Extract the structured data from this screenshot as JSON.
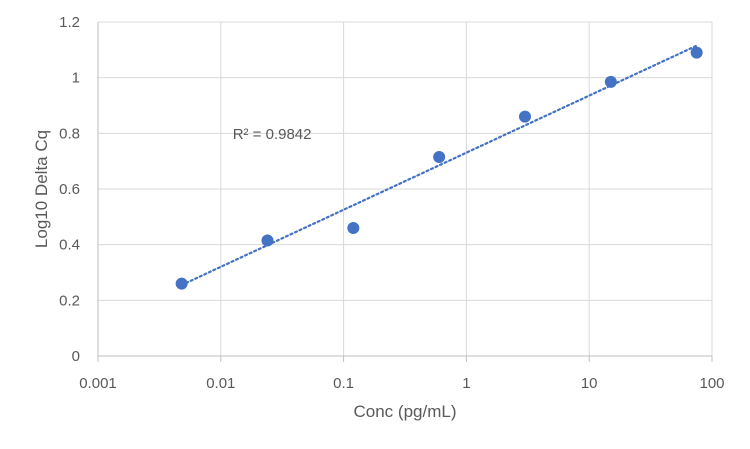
{
  "chart_data": {
    "type": "scatter",
    "title": "",
    "xlabel": "Conc (pg/mL)",
    "ylabel": "Log10 Delta Cq",
    "x_scale": "log",
    "xlim": [
      0.001,
      100
    ],
    "ylim": [
      0,
      1.2
    ],
    "x_ticks": [
      0.001,
      0.01,
      0.1,
      1,
      10,
      100
    ],
    "x_tick_labels": [
      "0.001",
      "0.01",
      "0.1",
      "1",
      "10",
      "100"
    ],
    "y_ticks": [
      0,
      0.2,
      0.4,
      0.6,
      0.8,
      1,
      1.2
    ],
    "y_tick_labels": [
      "0",
      "0.2",
      "0.4",
      "0.6",
      "0.8",
      "1",
      "1.2"
    ],
    "grid": true,
    "legend": "none",
    "marker_color": "#4472c4",
    "trendline_color": "#4472c4",
    "series": [
      {
        "x": [
          0.0048,
          0.024,
          0.12,
          0.6,
          3.0,
          15.0,
          75.0
        ],
        "y": [
          0.26,
          0.415,
          0.46,
          0.715,
          0.86,
          0.985,
          1.09
        ]
      }
    ],
    "trendline": {
      "type": "logarithmic",
      "style": "dotted",
      "x_range": [
        0.0048,
        75.0
      ],
      "y_range": [
        0.255,
        1.115
      ]
    },
    "annotation": {
      "text": "R² = 0.9842",
      "x": 0.0125,
      "y": 0.78
    }
  }
}
